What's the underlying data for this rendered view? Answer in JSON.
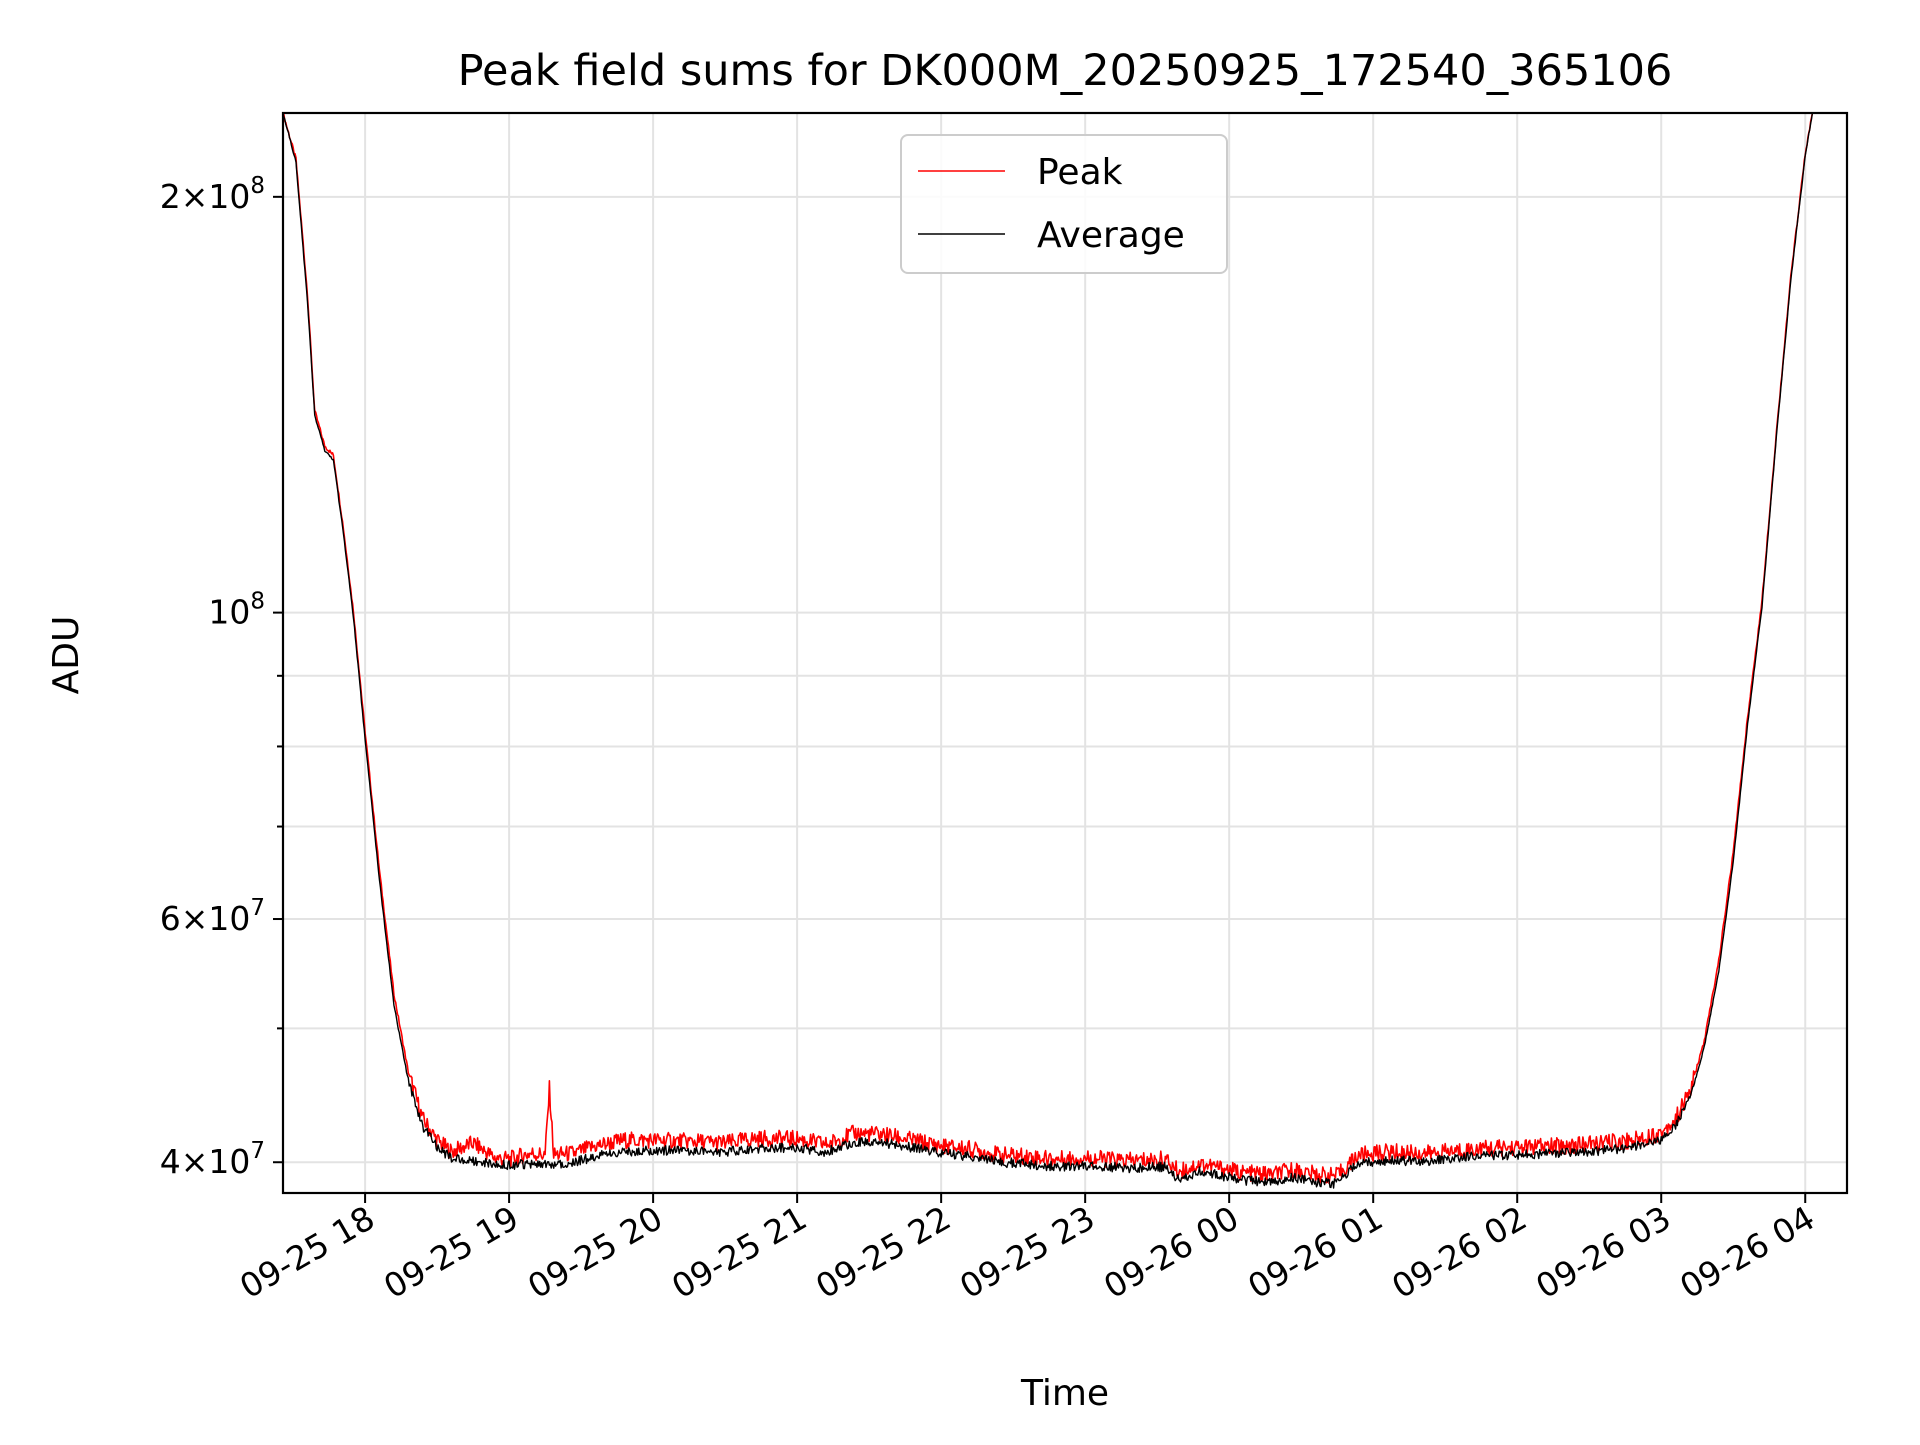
{
  "chart_data": {
    "type": "line",
    "title": "Peak field sums for DK000M_20250925_172540_365106",
    "xlabel": "Time",
    "ylabel": "ADU",
    "y_scale": "log",
    "grid": true,
    "legend_position": "top-center",
    "x_range_hours": [
      17.43,
      28.29
    ],
    "ylim": [
      38000000,
      230000000
    ],
    "x_ticks": [
      {
        "hour": 18,
        "label": "09-25 18"
      },
      {
        "hour": 19,
        "label": "09-25 19"
      },
      {
        "hour": 20,
        "label": "09-25 20"
      },
      {
        "hour": 21,
        "label": "09-25 21"
      },
      {
        "hour": 22,
        "label": "09-25 22"
      },
      {
        "hour": 23,
        "label": "09-25 23"
      },
      {
        "hour": 24,
        "label": "09-26 00"
      },
      {
        "hour": 25,
        "label": "09-26 01"
      },
      {
        "hour": 26,
        "label": "09-26 02"
      },
      {
        "hour": 27,
        "label": "09-26 03"
      },
      {
        "hour": 28,
        "label": "09-26 04"
      }
    ],
    "y_major_ticks": [
      {
        "value": 40000000,
        "mantissa": "4×10",
        "exponent": "7"
      },
      {
        "value": 60000000,
        "mantissa": "6×10",
        "exponent": "7"
      },
      {
        "value": 100000000,
        "mantissa": "10",
        "exponent": "8"
      },
      {
        "value": 200000000,
        "mantissa": "2×10",
        "exponent": "8"
      }
    ],
    "y_minor_ticks": [
      50000000,
      70000000,
      80000000,
      90000000,
      300000000
    ],
    "series": [
      {
        "name": "Peak",
        "color": "#ff0000",
        "points": [
          [
            17.43,
            230000000
          ],
          [
            17.52,
            213000000
          ],
          [
            17.6,
            170000000
          ],
          [
            17.65,
            140000000
          ],
          [
            17.72,
            132000000
          ],
          [
            17.78,
            130000000
          ],
          [
            17.85,
            115000000
          ],
          [
            17.92,
            100000000
          ],
          [
            18.0,
            82000000
          ],
          [
            18.1,
            65000000
          ],
          [
            18.2,
            53000000
          ],
          [
            18.3,
            46500000
          ],
          [
            18.4,
            43000000
          ],
          [
            18.5,
            41500000
          ],
          [
            18.6,
            40700000
          ],
          [
            18.75,
            41300000
          ],
          [
            18.9,
            40300000
          ],
          [
            19.0,
            40200000
          ],
          [
            19.15,
            40600000
          ],
          [
            19.25,
            40500000
          ],
          [
            19.28,
            45200000
          ],
          [
            19.31,
            40500000
          ],
          [
            19.45,
            40600000
          ],
          [
            19.6,
            41100000
          ],
          [
            19.8,
            41500000
          ],
          [
            20.0,
            41500000
          ],
          [
            20.3,
            41400000
          ],
          [
            20.5,
            41300000
          ],
          [
            20.7,
            41600000
          ],
          [
            21.0,
            41600000
          ],
          [
            21.2,
            41200000
          ],
          [
            21.4,
            42000000
          ],
          [
            21.6,
            41900000
          ],
          [
            21.8,
            41500000
          ],
          [
            22.0,
            41100000
          ],
          [
            22.2,
            40900000
          ],
          [
            22.4,
            40500000
          ],
          [
            22.6,
            40400000
          ],
          [
            22.8,
            40200000
          ],
          [
            23.0,
            40300000
          ],
          [
            23.3,
            40100000
          ],
          [
            23.55,
            40200000
          ],
          [
            23.65,
            39400000
          ],
          [
            23.8,
            39900000
          ],
          [
            23.95,
            39600000
          ],
          [
            24.1,
            39300000
          ],
          [
            24.3,
            39200000
          ],
          [
            24.45,
            39500000
          ],
          [
            24.6,
            39200000
          ],
          [
            24.75,
            39100000
          ],
          [
            24.9,
            40500000
          ],
          [
            25.1,
            40700000
          ],
          [
            25.4,
            40600000
          ],
          [
            25.7,
            40900000
          ],
          [
            26.0,
            41000000
          ],
          [
            26.3,
            41100000
          ],
          [
            26.6,
            41300000
          ],
          [
            26.8,
            41500000
          ],
          [
            27.0,
            42000000
          ],
          [
            27.1,
            43000000
          ],
          [
            27.2,
            45000000
          ],
          [
            27.3,
            49000000
          ],
          [
            27.4,
            56000000
          ],
          [
            27.5,
            67000000
          ],
          [
            27.6,
            84000000
          ],
          [
            27.7,
            102000000
          ],
          [
            27.8,
            135000000
          ],
          [
            27.9,
            175000000
          ],
          [
            28.0,
            215000000
          ],
          [
            28.05,
            230000000
          ]
        ]
      },
      {
        "name": "Average",
        "color": "#000000",
        "points": [
          [
            17.43,
            230000000
          ],
          [
            17.52,
            212000000
          ],
          [
            17.6,
            168000000
          ],
          [
            17.65,
            139000000
          ],
          [
            17.72,
            131000000
          ],
          [
            17.78,
            129000000
          ],
          [
            17.85,
            114000000
          ],
          [
            17.92,
            99000000
          ],
          [
            18.0,
            81000000
          ],
          [
            18.1,
            64000000
          ],
          [
            18.2,
            52000000
          ],
          [
            18.3,
            45800000
          ],
          [
            18.4,
            42500000
          ],
          [
            18.5,
            41000000
          ],
          [
            18.6,
            40300000
          ],
          [
            18.75,
            40100000
          ],
          [
            18.9,
            39900000
          ],
          [
            19.0,
            39800000
          ],
          [
            19.15,
            39900000
          ],
          [
            19.25,
            39800000
          ],
          [
            19.31,
            39900000
          ],
          [
            19.45,
            40000000
          ],
          [
            19.6,
            40400000
          ],
          [
            19.8,
            40700000
          ],
          [
            20.0,
            40800000
          ],
          [
            20.3,
            40800000
          ],
          [
            20.5,
            40700000
          ],
          [
            20.7,
            40900000
          ],
          [
            21.0,
            41000000
          ],
          [
            21.2,
            40700000
          ],
          [
            21.4,
            41400000
          ],
          [
            21.6,
            41300000
          ],
          [
            21.8,
            41000000
          ],
          [
            22.0,
            40600000
          ],
          [
            22.2,
            40400000
          ],
          [
            22.4,
            40000000
          ],
          [
            22.6,
            39900000
          ],
          [
            22.8,
            39700000
          ],
          [
            23.0,
            39800000
          ],
          [
            23.3,
            39600000
          ],
          [
            23.55,
            39700000
          ],
          [
            23.65,
            38900000
          ],
          [
            23.8,
            39400000
          ],
          [
            23.95,
            39100000
          ],
          [
            24.1,
            38800000
          ],
          [
            24.3,
            38700000
          ],
          [
            24.45,
            39000000
          ],
          [
            24.6,
            38700000
          ],
          [
            24.75,
            38600000
          ],
          [
            24.9,
            40000000
          ],
          [
            25.1,
            40100000
          ],
          [
            25.4,
            40100000
          ],
          [
            25.7,
            40400000
          ],
          [
            26.0,
            40500000
          ],
          [
            26.3,
            40600000
          ],
          [
            26.6,
            40800000
          ],
          [
            26.8,
            41000000
          ],
          [
            27.0,
            41500000
          ],
          [
            27.1,
            42500000
          ],
          [
            27.2,
            44500000
          ],
          [
            27.3,
            48500000
          ],
          [
            27.4,
            55000000
          ],
          [
            27.5,
            66000000
          ],
          [
            27.6,
            83000000
          ],
          [
            27.7,
            101000000
          ],
          [
            27.8,
            134000000
          ],
          [
            27.9,
            174000000
          ],
          [
            28.0,
            214000000
          ],
          [
            28.05,
            230000000
          ]
        ]
      }
    ]
  }
}
